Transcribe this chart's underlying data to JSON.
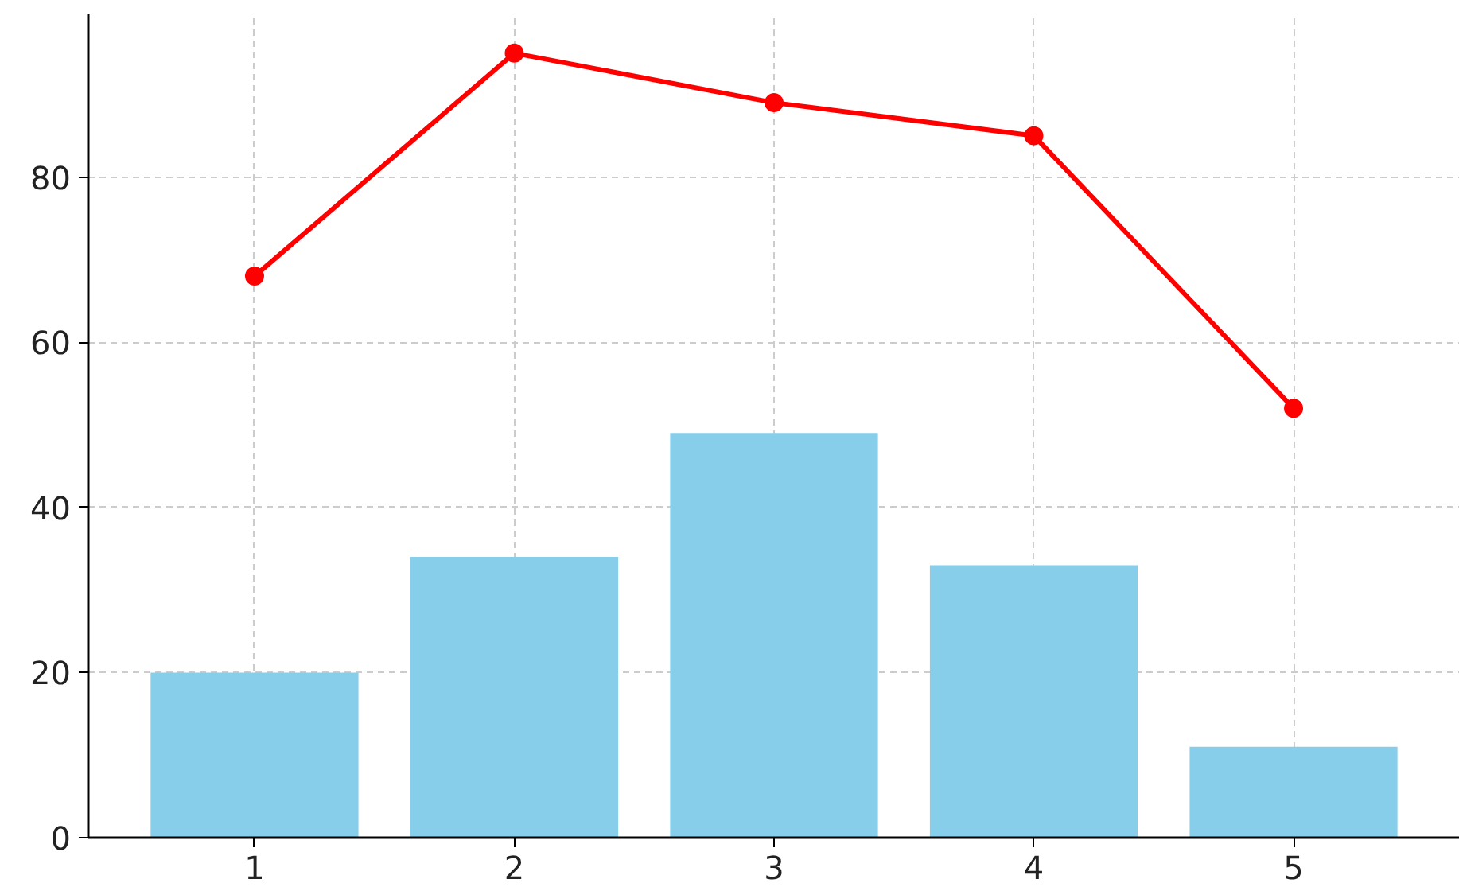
{
  "chart_data": {
    "type": "bar",
    "x": [
      1,
      2,
      3,
      4,
      5
    ],
    "xlim": [
      0.36,
      5.64
    ],
    "xticks": [
      1,
      2,
      3,
      4,
      5
    ],
    "ylim": [
      0,
      99.8
    ],
    "yticks": [
      0,
      20,
      40,
      60,
      80
    ],
    "grid": true,
    "series": [
      {
        "color": "#87ceeb",
        "values": [
          20,
          34,
          49,
          33,
          11
        ]
      },
      {
        "type": "line",
        "color": "#ff0000",
        "marker": "circle",
        "values": [
          68,
          95,
          89,
          85,
          52
        ]
      }
    ]
  }
}
